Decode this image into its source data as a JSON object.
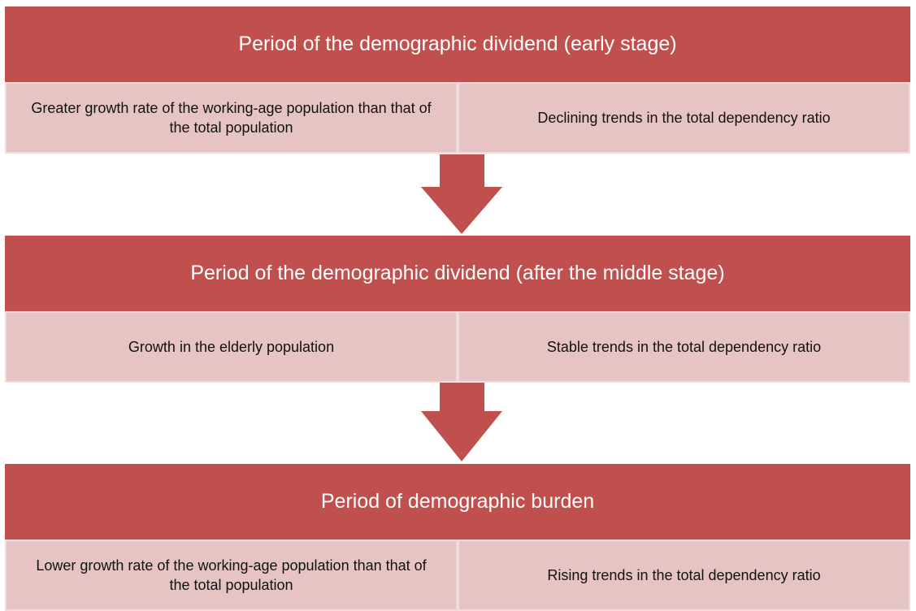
{
  "stages": [
    {
      "title": "Period of the demographic dividend (early stage)",
      "items": [
        "Greater growth rate of the working-age population than that of the total population",
        "Declining trends in the total dependency ratio"
      ]
    },
    {
      "title": "Period of the demographic dividend (after the middle stage)",
      "items": [
        "Growth in the elderly population",
        "Stable trends in the total dependency ratio"
      ]
    },
    {
      "title": "Period of demographic burden",
      "items": [
        "Lower growth rate of the working-age population than that of the total population",
        "Rising trends in the total dependency ratio"
      ]
    }
  ]
}
